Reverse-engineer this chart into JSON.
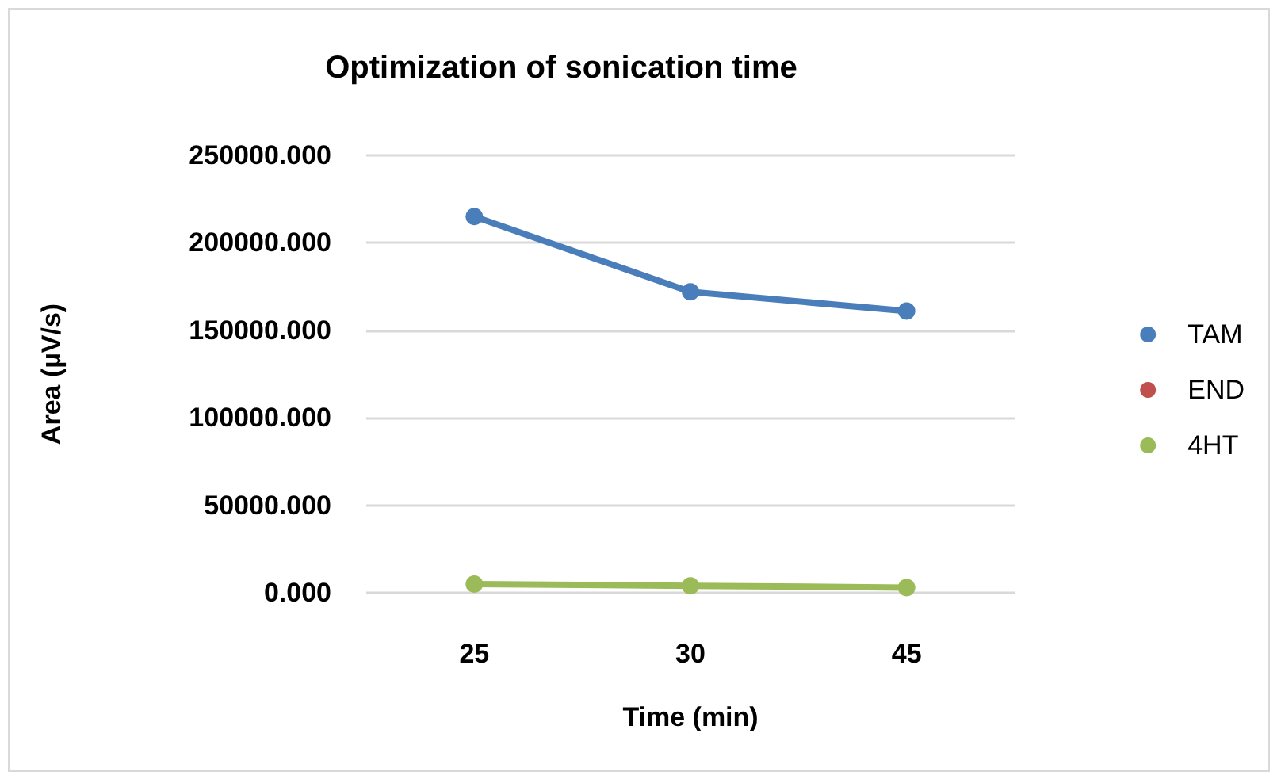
{
  "chart_data": {
    "type": "line",
    "title": "Optimization of sonication time",
    "xlabel": "Time (min)",
    "ylabel": "Area (µV/s)",
    "categories": [
      "25",
      "30",
      "45"
    ],
    "series": [
      {
        "name": "TAM",
        "color": "#4a7ebb",
        "values": [
          215000,
          172000,
          161000
        ]
      },
      {
        "name": "END",
        "color": "#c0504d",
        "values": [
          null,
          null,
          null
        ]
      },
      {
        "name": "4HT",
        "color": "#9bbb59",
        "values": [
          5000,
          4000,
          3000
        ]
      }
    ],
    "ylim": [
      0,
      250000
    ],
    "yticks": [
      {
        "value": 0,
        "label": "0.000"
      },
      {
        "value": 50000,
        "label": "50000.000"
      },
      {
        "value": 100000,
        "label": "100000.000"
      },
      {
        "value": 150000,
        "label": "150000.000"
      },
      {
        "value": 200000,
        "label": "200000.000"
      },
      {
        "value": 250000,
        "label": "250000.000"
      }
    ],
    "grid": "y",
    "legend": "right",
    "marker": "circle",
    "line_style": "solid"
  }
}
